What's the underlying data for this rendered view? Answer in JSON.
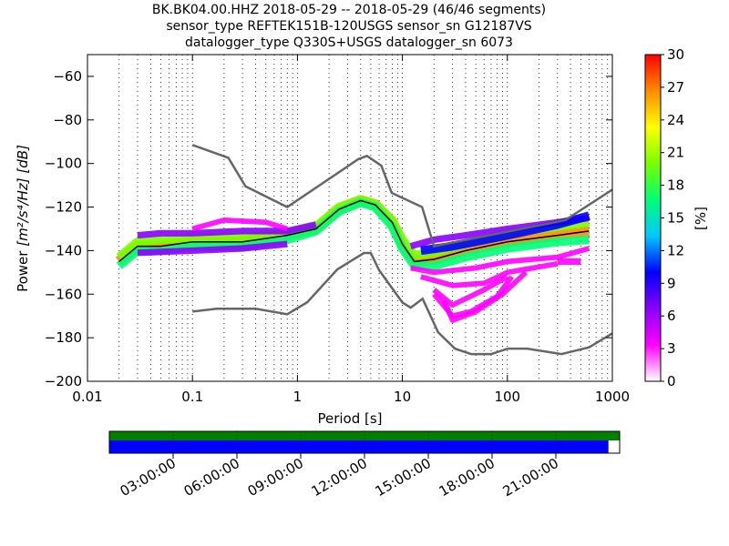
{
  "title_lines": [
    "BK.BK04.00.HHZ   2018-05-29 -- 2018-05-29  (46/46 segments)",
    "sensor_type REFTEK151B-120USGS sensor_sn G12187VS",
    "datalogger_type Q330S+USGS datalogger_sn 6073"
  ],
  "chart_data": {
    "type": "heatmap",
    "xlabel": "Period [s]",
    "ylabel_prefix": "Power ",
    "ylabel_units": "[m²/s⁴/Hz] [dB]",
    "x_scale": "log",
    "xlim": [
      0.01,
      1000
    ],
    "ylim": [
      -200,
      -50
    ],
    "x_ticks": [
      0.01,
      0.1,
      1,
      10,
      100,
      1000
    ],
    "x_tick_labels": [
      "0.01",
      "0.1",
      "1",
      "10",
      "100",
      "1000"
    ],
    "y_ticks": [
      -200,
      -180,
      -160,
      -140,
      -120,
      -100,
      -80,
      -60
    ],
    "y_tick_labels": [
      "−200",
      "−180",
      "−160",
      "−140",
      "−120",
      "−100",
      "−80",
      "−60"
    ],
    "grid": "dotted vertical",
    "colorbar": {
      "label": "[%]",
      "range": [
        0,
        30
      ],
      "ticks": [
        0,
        3,
        6,
        9,
        12,
        15,
        18,
        21,
        24,
        27,
        30
      ],
      "tick_labels": [
        "0",
        "3",
        "6",
        "9",
        "12",
        "15",
        "18",
        "21",
        "24",
        "27",
        "30"
      ],
      "colormap": [
        "#ffffff",
        "#ff00ff",
        "#8a00ff",
        "#0000ff",
        "#00c8ff",
        "#00ff78",
        "#78ff00",
        "#ffff00",
        "#ff8c00",
        "#ff0000"
      ]
    },
    "noise_models": [
      {
        "name": "NHNM",
        "color": "#666666",
        "points": [
          [
            0.1,
            -91.5
          ],
          [
            0.22,
            -97.4
          ],
          [
            0.32,
            -110.5
          ],
          [
            0.8,
            -120
          ],
          [
            3.8,
            -98
          ],
          [
            4.6,
            -96.5
          ],
          [
            6.3,
            -101
          ],
          [
            7.9,
            -113.5
          ],
          [
            15.4,
            -120
          ],
          [
            20,
            -138
          ],
          [
            354.8,
            -126
          ],
          [
            1000,
            -112
          ]
        ]
      },
      {
        "name": "NLNM",
        "color": "#666666",
        "points": [
          [
            0.1,
            -168
          ],
          [
            0.17,
            -166.7
          ],
          [
            0.4,
            -166.7
          ],
          [
            0.8,
            -169.2
          ],
          [
            1.24,
            -163.7
          ],
          [
            2.4,
            -148.6
          ],
          [
            4.3,
            -141.1
          ],
          [
            5,
            -141.1
          ],
          [
            6,
            -149
          ],
          [
            10,
            -163.8
          ],
          [
            12,
            -166.2
          ],
          [
            15.6,
            -162.1
          ],
          [
            21.9,
            -177.5
          ],
          [
            31.6,
            -185
          ],
          [
            45,
            -187.5
          ],
          [
            70,
            -187.5
          ],
          [
            101,
            -185
          ],
          [
            154,
            -185
          ],
          [
            328,
            -187.5
          ],
          [
            600,
            -184.4
          ],
          [
            1000,
            -178
          ]
        ]
      }
    ],
    "psd_mode": {
      "color": "#000000",
      "points": [
        [
          0.02,
          -145
        ],
        [
          0.03,
          -138
        ],
        [
          0.05,
          -138
        ],
        [
          0.1,
          -136
        ],
        [
          0.3,
          -136
        ],
        [
          0.8,
          -133
        ],
        [
          1.5,
          -130
        ],
        [
          2.5,
          -121
        ],
        [
          4,
          -117
        ],
        [
          5.5,
          -119
        ],
        [
          8,
          -127
        ],
        [
          10,
          -137
        ],
        [
          13,
          -145
        ],
        [
          20,
          -144
        ],
        [
          40,
          -140
        ],
        [
          100,
          -136
        ],
        [
          300,
          -133
        ],
        [
          600,
          -131
        ]
      ]
    },
    "density_bands": [
      {
        "points": [
          [
            0.02,
            -145
          ],
          [
            0.03,
            -138
          ],
          [
            0.05,
            -138
          ],
          [
            0.1,
            -136
          ],
          [
            0.3,
            -136
          ],
          [
            0.8,
            -133
          ],
          [
            1.5,
            -130
          ],
          [
            2.5,
            -121
          ],
          [
            4,
            -117
          ],
          [
            5.5,
            -119
          ],
          [
            8,
            -127
          ],
          [
            10,
            -137
          ],
          [
            13,
            -145
          ],
          [
            20,
            -144
          ],
          [
            40,
            -140
          ],
          [
            100,
            -136
          ],
          [
            300,
            -133
          ],
          [
            600,
            -131
          ]
        ],
        "width_db": 2.5,
        "percent": 27
      },
      {
        "points": [
          [
            0.02,
            -143
          ],
          [
            0.03,
            -136
          ],
          [
            0.05,
            -135
          ],
          [
            0.1,
            -134
          ],
          [
            0.3,
            -134
          ],
          [
            0.8,
            -132
          ],
          [
            1.5,
            -129
          ],
          [
            2.5,
            -120
          ],
          [
            4,
            -116.5
          ],
          [
            5.5,
            -118.5
          ],
          [
            8,
            -126
          ],
          [
            10,
            -135
          ],
          [
            13,
            -142
          ],
          [
            20,
            -141
          ],
          [
            40,
            -137
          ],
          [
            100,
            -132
          ],
          [
            300,
            -129
          ],
          [
            600,
            -127
          ]
        ],
        "width_db": 2,
        "percent": 19
      },
      {
        "points": [
          [
            0.02,
            -147
          ],
          [
            0.03,
            -140
          ],
          [
            0.05,
            -140
          ],
          [
            0.1,
            -138
          ],
          [
            0.3,
            -138
          ],
          [
            0.8,
            -135
          ],
          [
            1.5,
            -131
          ],
          [
            2.5,
            -122
          ],
          [
            4,
            -118
          ],
          [
            5.5,
            -120
          ],
          [
            8,
            -129
          ],
          [
            10,
            -139
          ],
          [
            13,
            -147
          ],
          [
            20,
            -147
          ],
          [
            40,
            -143
          ],
          [
            100,
            -139
          ],
          [
            300,
            -136
          ],
          [
            600,
            -135
          ]
        ],
        "width_db": 2,
        "percent": 16
      },
      {
        "points": [
          [
            0.03,
            -133
          ],
          [
            0.05,
            -132
          ],
          [
            0.1,
            -132
          ],
          [
            0.3,
            -131
          ],
          [
            0.8,
            -131
          ],
          [
            1.5,
            -128
          ]
        ],
        "width_db": 1.5,
        "percent": 7
      },
      {
        "points": [
          [
            0.03,
            -141
          ],
          [
            0.1,
            -140
          ],
          [
            0.3,
            -139
          ],
          [
            0.8,
            -137
          ]
        ],
        "width_db": 1.5,
        "percent": 8
      },
      {
        "points": [
          [
            0.1,
            -130
          ],
          [
            0.2,
            -126
          ],
          [
            0.5,
            -127
          ],
          [
            0.8,
            -130
          ]
        ],
        "width_db": 1.2,
        "percent": 2
      },
      {
        "points": [
          [
            12,
            -138
          ],
          [
            20,
            -135
          ],
          [
            40,
            -133
          ],
          [
            100,
            -130
          ],
          [
            300,
            -127
          ],
          [
            600,
            -125
          ]
        ],
        "width_db": 1.5,
        "percent": 6
      },
      {
        "points": [
          [
            15,
            -140
          ],
          [
            30,
            -138
          ],
          [
            100,
            -133
          ],
          [
            300,
            -128
          ],
          [
            600,
            -124
          ]
        ],
        "width_db": 2,
        "percent": 11
      },
      {
        "points": [
          [
            12,
            -148
          ],
          [
            20,
            -150
          ],
          [
            50,
            -148
          ],
          [
            100,
            -145
          ],
          [
            300,
            -143
          ],
          [
            600,
            -139
          ]
        ],
        "width_db": 1.2,
        "percent": 2
      },
      {
        "points": [
          [
            15,
            -152
          ],
          [
            30,
            -156
          ],
          [
            60,
            -155
          ],
          [
            100,
            -150
          ],
          [
            300,
            -146
          ]
        ],
        "width_db": 1.2,
        "percent": 2
      },
      {
        "points": [
          [
            20,
            -158
          ],
          [
            30,
            -165
          ],
          [
            60,
            -158
          ],
          [
            100,
            -152
          ]
        ],
        "width_db": 1.2,
        "percent": 2
      },
      {
        "points": [
          [
            20,
            -160
          ],
          [
            30,
            -170
          ],
          [
            45,
            -168
          ],
          [
            80,
            -161
          ],
          [
            110,
            -152
          ]
        ],
        "width_db": 1.2,
        "percent": 3
      },
      {
        "points": [
          [
            25,
            -163
          ],
          [
            30,
            -172
          ],
          [
            50,
            -168
          ],
          [
            90,
            -160
          ],
          [
            150,
            -150
          ]
        ],
        "width_db": 1.2,
        "percent": 4
      },
      {
        "points": [
          [
            300,
            -145
          ],
          [
            500,
            -145
          ]
        ],
        "width_db": 1.5,
        "percent": 3
      }
    ]
  },
  "timeline": {
    "top_bar_color": "#007f00",
    "bottom_bar_color": "#0000ff",
    "coverage_fraction": 0.978,
    "tick_labels": [
      "03:00:00",
      "06:00:00",
      "09:00:00",
      "12:00:00",
      "15:00:00",
      "18:00:00",
      "21:00:00"
    ],
    "tick_hours": [
      3,
      6,
      9,
      12,
      15,
      18,
      21
    ],
    "span_hours": 24
  }
}
